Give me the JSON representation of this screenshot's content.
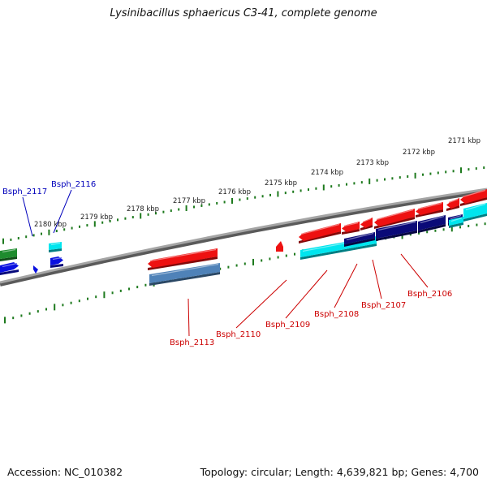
{
  "title": "Lysinibacillus sphaericus C3-41, complete genome",
  "footer": {
    "accession": "Accession: NC_010382",
    "stats": "Topology: circular; Length: 4,639,821 bp; Genes: 4,700"
  },
  "colors": {
    "backbone": "#8c8c8c",
    "ticks": "#1e7a1e",
    "red": "#ee1111",
    "cyan": "#00e5ee",
    "navy": "#0a0a78",
    "blue": "#0a10e0",
    "steelblue": "#4f82b8",
    "green": "#1e8c2e",
    "label_red": "#cc0000",
    "label_blue": "#0000bb"
  },
  "scale_labels": [
    "2171 kbp",
    "2172 kbp",
    "2173 kbp",
    "2174 kbp",
    "2175 kbp",
    "2176 kbp",
    "2177 kbp",
    "2178 kbp",
    "2179 kbp",
    "2180 kbp"
  ],
  "gene_labels": [
    {
      "name": "Bsph_2106",
      "strand": "minus"
    },
    {
      "name": "Bsph_2107",
      "strand": "minus"
    },
    {
      "name": "Bsph_2108",
      "strand": "minus"
    },
    {
      "name": "Bsph_2109",
      "strand": "minus"
    },
    {
      "name": "Bsph_2110",
      "strand": "minus"
    },
    {
      "name": "Bsph_2113",
      "strand": "minus"
    },
    {
      "name": "Bsph_2116",
      "strand": "plus"
    },
    {
      "name": "Bsph_2117",
      "strand": "plus"
    }
  ]
}
